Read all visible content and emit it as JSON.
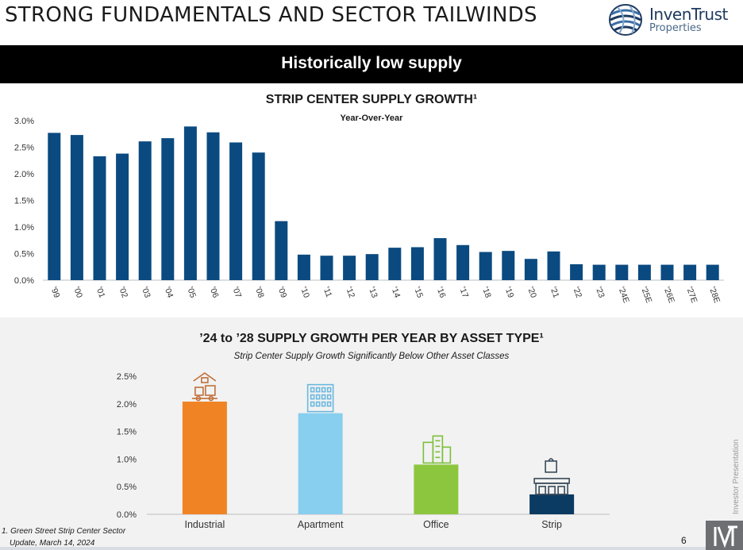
{
  "header": {
    "title": "STRONG FUNDAMENTALS AND SECTOR TAILWINDS",
    "logo_name": "InvenTrust",
    "logo_sub": "Properties"
  },
  "banner": {
    "text": "Historically low supply"
  },
  "colors": {
    "navy": "#0a4a80",
    "industrial": "#f08425",
    "apartment": "#87ceef",
    "office": "#8cc63f",
    "strip": "#0b3a62",
    "industrial_icon": "#c0703a",
    "apartment_icon": "#6ab8df",
    "office_icon": "#7bbf3a",
    "strip_icon": "#3a4a5a"
  },
  "chart1": {
    "title": "STRIP CENTER SUPPLY GROWTH¹",
    "subtitle": "Year-Over-Year"
  },
  "chart2": {
    "title": "’24 to ’28 SUPPLY GROWTH PER YEAR BY ASSET TYPE¹",
    "subtitle": "Strip Center Supply Growth Significantly Below Other Asset Classes",
    "icons": [
      "warehouse-forklift-icon",
      "apartment-building-icon",
      "office-buildings-icon",
      "shopping-storefront-icon"
    ]
  },
  "chart_data": [
    {
      "type": "bar",
      "title": "STRIP CENTER SUPPLY GROWTH¹",
      "subtitle": "Year-Over-Year",
      "categories": [
        "'99",
        "'00",
        "'01",
        "'02",
        "'03",
        "'04",
        "'05",
        "'06",
        "'07",
        "'08",
        "'09",
        "'10",
        "'11",
        "'12",
        "'13",
        "'14",
        "'15",
        "'16",
        "'17",
        "'18",
        "'19",
        "'20",
        "'21",
        "'22",
        "'23",
        "'24E",
        "'25E",
        "'26E",
        "'27E",
        "'28E"
      ],
      "values": [
        2.77,
        2.73,
        2.33,
        2.38,
        2.61,
        2.67,
        2.89,
        2.78,
        2.59,
        2.4,
        1.11,
        0.48,
        0.46,
        0.46,
        0.49,
        0.61,
        0.62,
        0.79,
        0.66,
        0.53,
        0.55,
        0.4,
        0.54,
        0.3,
        0.29,
        0.29,
        0.29,
        0.29,
        0.29,
        0.29
      ],
      "ylim": [
        0,
        3.0
      ],
      "yticks": [
        "0.0%",
        "0.5%",
        "1.0%",
        "1.5%",
        "2.0%",
        "2.5%",
        "3.0%"
      ],
      "grid": false,
      "color": "#0a4a80"
    },
    {
      "type": "bar",
      "title": "’24 to ’28 SUPPLY GROWTH PER YEAR BY ASSET TYPE¹",
      "subtitle": "Strip Center Supply Growth Significantly Below Other Asset Classes",
      "categories": [
        "Industrial",
        "Apartment",
        "Office",
        "Strip"
      ],
      "values": [
        2.04,
        1.83,
        0.9,
        0.36
      ],
      "ylim": [
        0,
        2.5
      ],
      "yticks": [
        "0.0%",
        "0.5%",
        "1.0%",
        "1.5%",
        "2.0%",
        "2.5%"
      ],
      "grid": false,
      "colors": [
        "#f08425",
        "#87ceef",
        "#8cc63f",
        "#0b3a62"
      ]
    }
  ],
  "footer": {
    "footnote_line1": "1.  Green Street Strip Center Sector",
    "footnote_line2": "Update, March 14, 2024",
    "page_number": "6",
    "side_text": "Investor Presentation"
  }
}
